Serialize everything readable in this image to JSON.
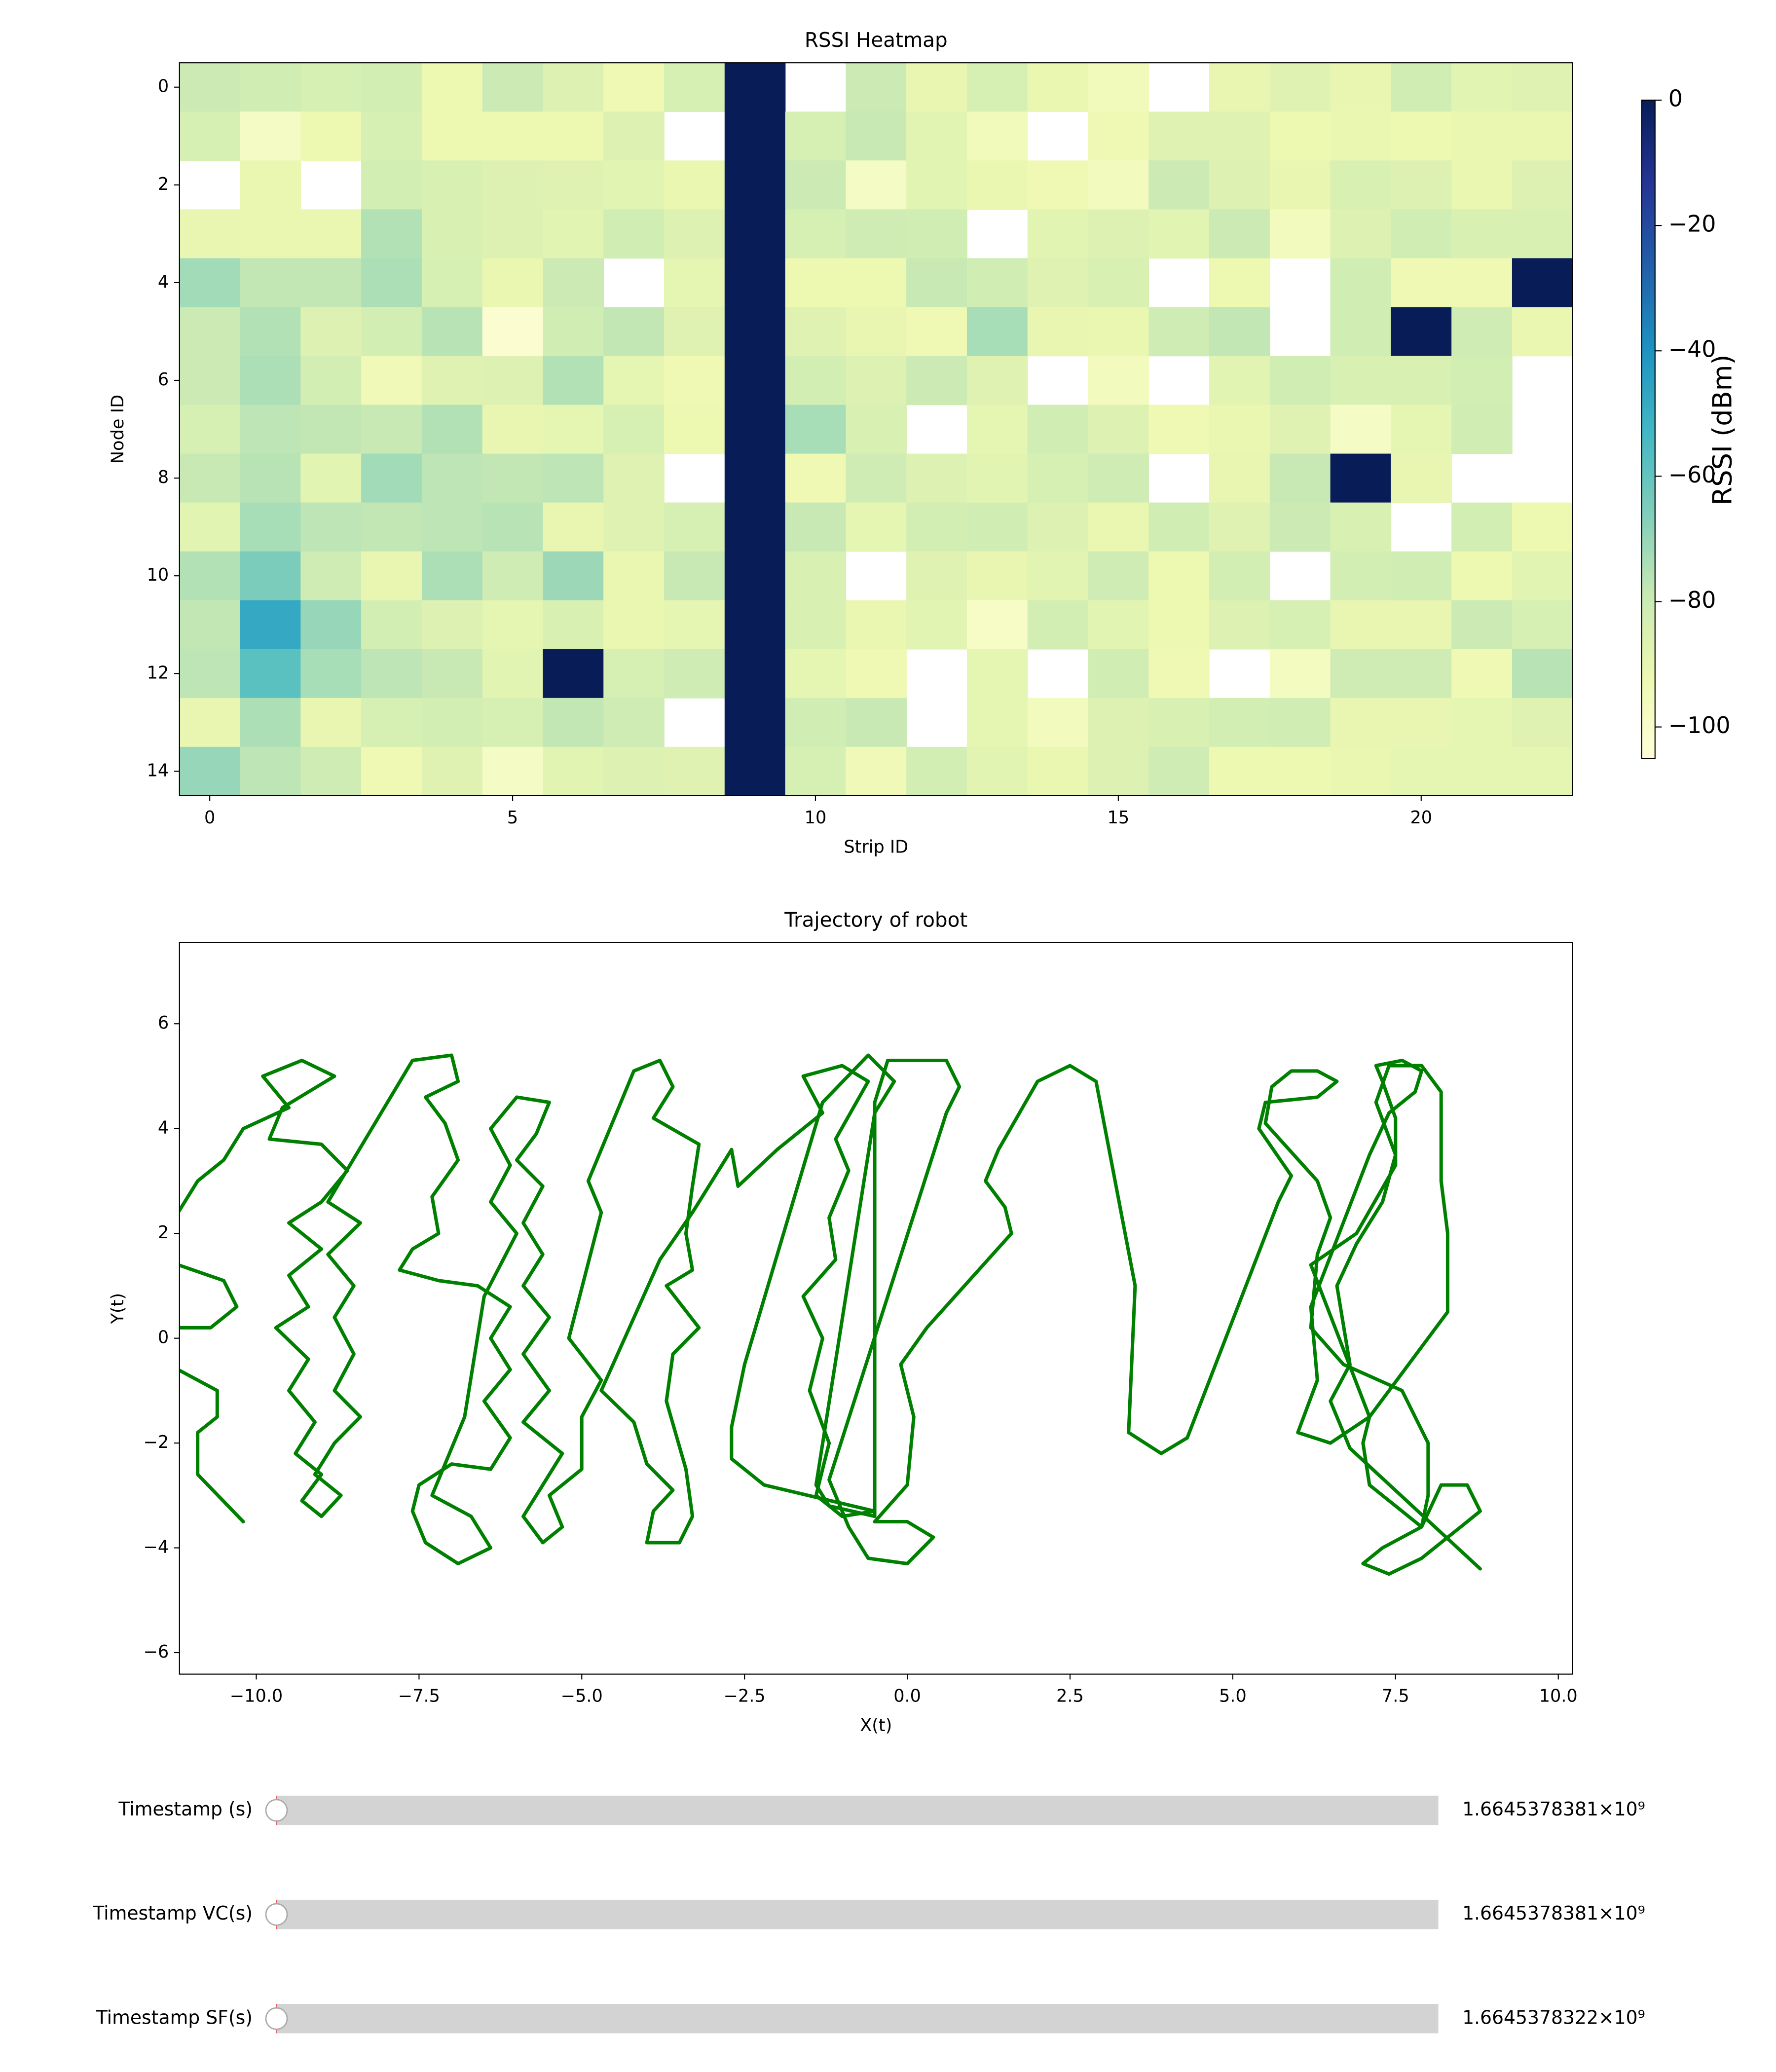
{
  "chart_data": [
    {
      "type": "heatmap",
      "title": "RSSI Heatmap",
      "xlabel": "Strip ID",
      "ylabel": "Node ID",
      "colorbar_label": "RSSI (dBm)",
      "colormap": [
        "#ffffd9",
        "#edf8b1",
        "#c7e9b4",
        "#7fcdbb",
        "#41b6c4",
        "#1d91c0",
        "#225ea8",
        "#253494",
        "#081d58"
      ],
      "clim": [
        -105,
        0
      ],
      "cticks": [
        0,
        {
          "value": -20,
          "label": "−20"
        },
        {
          "value": -40,
          "label": "−40"
        },
        {
          "value": -60,
          "label": "−60"
        },
        {
          "value": -80,
          "label": "−80"
        },
        {
          "value": -100,
          "label": "−100"
        }
      ],
      "xlim": [
        -0.5,
        22.5
      ],
      "ylim": [
        14.5,
        -0.5
      ],
      "xticks": [
        0,
        5,
        10,
        15,
        20
      ],
      "yticks": [
        0,
        2,
        4,
        6,
        8,
        10,
        12,
        14
      ],
      "z": [
        [
          -80,
          -82,
          -84,
          -83,
          -92,
          -80,
          -86,
          -93,
          -84,
          0,
          null,
          -80,
          -90,
          -84,
          -91,
          -95,
          null,
          -90,
          -87,
          -90,
          -82,
          -88,
          -87
        ],
        [
          -84,
          -98,
          -92,
          -84,
          -92,
          -92,
          -92,
          -86,
          null,
          0,
          -84,
          -79,
          -88,
          -95,
          null,
          -93,
          -87,
          -87,
          -92,
          -91,
          -92,
          -91,
          -91
        ],
        [
          null,
          -91,
          null,
          -83,
          -85,
          -86,
          -87,
          -88,
          -91,
          0,
          -80,
          -98,
          -88,
          -91,
          -93,
          -96,
          -80,
          -86,
          -90,
          -85,
          -86,
          -91,
          -86
        ],
        [
          -90,
          -91,
          -91,
          -75,
          -85,
          -86,
          -88,
          -82,
          -86,
          0,
          -84,
          -81,
          -82,
          null,
          -88,
          -86,
          -88,
          -80,
          -96,
          -86,
          -82,
          -85,
          -85
        ],
        [
          -72,
          -78,
          -78,
          -74,
          -84,
          -91,
          -80,
          null,
          -89,
          0,
          -92,
          -92,
          -79,
          -82,
          -87,
          -85,
          null,
          -92,
          null,
          -82,
          -93,
          -93,
          0
        ],
        [
          -80,
          -75,
          -86,
          -83,
          -76,
          -102,
          -82,
          -78,
          -87,
          0,
          -87,
          -90,
          -93,
          -73,
          -90,
          -91,
          -81,
          -78,
          null,
          -82,
          0,
          -81,
          -91
        ],
        [
          -80,
          -74,
          -83,
          -94,
          -87,
          -86,
          -75,
          -89,
          -93,
          0,
          -83,
          -86,
          -80,
          -87,
          null,
          -96,
          null,
          -88,
          -82,
          -85,
          -85,
          -83,
          null
        ],
        [
          -84,
          -77,
          -78,
          -79,
          -75,
          -90,
          -89,
          -84,
          -92,
          0,
          -73,
          -85,
          null,
          -89,
          -82,
          -86,
          -93,
          -91,
          -87,
          -98,
          -89,
          -82,
          null
        ],
        [
          -79,
          -76,
          -88,
          -72,
          -77,
          -78,
          -77,
          -87,
          null,
          0,
          -93,
          -81,
          -86,
          -88,
          -84,
          -81,
          null,
          -90,
          -79,
          0,
          -90,
          null,
          null
        ],
        [
          -88,
          -73,
          -77,
          -78,
          -77,
          -76,
          -90,
          -87,
          -84,
          0,
          -79,
          -89,
          -83,
          -82,
          -86,
          -91,
          -82,
          -87,
          -80,
          -85,
          null,
          -83,
          -92
        ],
        [
          -75,
          -65,
          -81,
          -90,
          -74,
          -81,
          -71,
          -91,
          -79,
          0,
          -85,
          null,
          -87,
          -90,
          -88,
          -81,
          -92,
          -83,
          null,
          -83,
          -82,
          -92,
          -88
        ],
        [
          -78,
          -48,
          -70,
          -83,
          -86,
          -89,
          -85,
          -91,
          -89,
          0,
          -85,
          -91,
          -88,
          -99,
          -83,
          -88,
          -92,
          -86,
          -84,
          -90,
          -90,
          -80,
          -84
        ],
        [
          -77,
          -58,
          -73,
          -77,
          -79,
          -88,
          0,
          -84,
          -81,
          0,
          -89,
          -93,
          null,
          -89,
          null,
          -82,
          -93,
          null,
          -97,
          -81,
          -81,
          -93,
          -76
        ],
        [
          -90,
          -74,
          -90,
          -84,
          -83,
          -84,
          -78,
          -81,
          null,
          0,
          -82,
          -79,
          null,
          -89,
          -96,
          -86,
          -85,
          -83,
          -82,
          -90,
          -90,
          -89,
          -87
        ],
        [
          -70,
          -77,
          -81,
          -93,
          -87,
          -98,
          -88,
          -86,
          -87,
          0,
          -84,
          -94,
          -83,
          -88,
          -91,
          -86,
          -81,
          -92,
          -92,
          -91,
          -89,
          -89,
          -89
        ]
      ]
    },
    {
      "type": "line",
      "title": "Trajectory of robot",
      "xlabel": "X(t)",
      "ylabel": "Y(t)",
      "color": "#008000",
      "xlim": [
        -11.18,
        10.22
      ],
      "ylim": [
        -6.41,
        7.55
      ],
      "xticks": [
        {
          "value": -10,
          "label": "−10.0"
        },
        {
          "value": -7.5,
          "label": "−7.5"
        },
        {
          "value": -5,
          "label": "−5.0"
        },
        {
          "value": -2.5,
          "label": "−2.5"
        },
        {
          "value": 0,
          "label": "0.0"
        },
        {
          "value": 2.5,
          "label": "2.5"
        },
        {
          "value": 5,
          "label": "5.0"
        },
        {
          "value": 7.5,
          "label": "7.5"
        },
        {
          "value": 10,
          "label": "10.0"
        }
      ],
      "yticks": [
        {
          "value": -6,
          "label": "−6"
        },
        {
          "value": -4,
          "label": "−4"
        },
        {
          "value": -2,
          "label": "−2"
        },
        0,
        2,
        4,
        6
      ],
      "x": [
        -10.2,
        -10.9,
        -10.9,
        -10.6,
        -10.6,
        -11.2,
        null,
        -11.2,
        -10.5,
        -10.3,
        -10.7,
        -11.2,
        null,
        -11.2,
        -10.9,
        -10.5,
        -10.2,
        -9.5,
        -9.9,
        -9.3,
        -8.8,
        -9.6,
        -9.8,
        -9.0,
        -8.6,
        -9.0,
        -9.5,
        -9.0,
        -9.5,
        -9.2,
        -9.7,
        -9.2,
        -9.5,
        -9.1,
        -9.4,
        -9.0,
        -9.3,
        -9.0,
        -8.7,
        -9.1,
        -8.8,
        -8.4,
        -8.8,
        -8.5,
        -8.8,
        -8.5,
        -8.9,
        -8.4,
        -8.9,
        -7.6,
        -7.0,
        -6.9,
        -7.4,
        -7.1,
        -6.9,
        -7.3,
        -7.2,
        -7.6,
        -7.8,
        -7.2,
        -6.6,
        -6.1,
        -6.4,
        -6.1,
        -6.5,
        -6.1,
        -6.4,
        -7.0,
        -7.5,
        -7.6,
        -7.4,
        -6.9,
        -6.4,
        -6.7,
        -7.3,
        -6.8,
        -6.5,
        -6.0,
        -6.4,
        -6.1,
        -6.4,
        -6.0,
        -5.5,
        -5.7,
        -6.0,
        -5.6,
        -5.9,
        -5.6,
        -5.9,
        -5.5,
        -5.9,
        -5.5,
        -5.9,
        -5.3,
        -5.6,
        -5.9,
        -5.6,
        -5.3,
        -5.5,
        -5.0,
        -5.0,
        -4.7,
        -5.2,
        -4.7,
        -4.9,
        -4.2,
        -3.8,
        -3.6,
        -3.9,
        -3.2,
        -3.3,
        -3.4,
        -3.3,
        -3.7,
        -3.2,
        -3.6,
        -3.7,
        -3.4,
        -3.3,
        -3.5,
        -4.0,
        -3.9,
        -3.6,
        -4.0,
        -4.2,
        -4.7,
        -3.8,
        -3.3,
        -2.7,
        -2.6,
        -2.0,
        -1.3,
        -1.6,
        -1.0,
        -0.6,
        -1.1,
        -0.9,
        -1.2,
        -1.1,
        -1.6,
        -1.3,
        -1.5,
        -1.2,
        -1.4,
        -1.0,
        -0.5,
        -2.2,
        -2.7,
        -2.7,
        -2.5,
        -1.3,
        -0.6,
        -0.2,
        -0.5,
        -1.4,
        -1.2,
        -0.5,
        -0.5,
        -0.3,
        0.6,
        0.8,
        0.6,
        -1.2,
        -0.9,
        -0.6,
        0.0,
        0.4,
        0.0,
        -0.5,
        0.0,
        0.1,
        -0.1,
        0.3,
        1.6,
        1.5,
        1.2,
        1.4,
        2.0,
        2.5,
        2.9,
        3.5,
        3.4,
        3.9,
        4.3,
        5.7,
        5.9,
        5.4,
        5.5,
        6.3,
        6.6,
        6.3,
        5.9,
        5.6,
        5.5,
        6.3,
        6.5,
        6.3,
        6.2,
        6.7,
        7.6,
        8.0,
        8.0,
        7.9,
        7.3,
        7.0,
        7.4,
        7.9,
        8.5,
        8.8,
        8.6,
        8.2,
        7.9,
        7.1,
        7.0,
        7.1,
        6.2,
        6.9,
        7.5,
        7.5,
        7.3,
        7.2,
        7.6,
        7.9,
        7.8,
        7.4,
        7.1,
        6.2,
        6.3,
        6.0,
        6.5,
        7.1,
        8.3,
        8.3,
        8.2,
        8.2,
        7.9,
        7.4,
        7.2,
        7.5,
        7.3,
        6.9,
        6.6,
        6.8,
        6.5,
        6.8,
        8.8
      ],
      "y": [
        -3.5,
        -2.6,
        -1.8,
        -1.5,
        -1.0,
        -0.6,
        null,
        1.4,
        1.1,
        0.6,
        0.2,
        0.2,
        null,
        2.4,
        3.0,
        3.4,
        4.0,
        4.4,
        5.0,
        5.3,
        5.0,
        4.4,
        3.8,
        3.7,
        3.2,
        2.6,
        2.2,
        1.7,
        1.2,
        0.6,
        0.2,
        -0.4,
        -1.0,
        -1.6,
        -2.2,
        -2.6,
        -3.1,
        -3.4,
        -3.0,
        -2.6,
        -2.0,
        -1.5,
        -1.0,
        -0.3,
        0.4,
        1.0,
        1.6,
        2.2,
        2.6,
        5.3,
        5.4,
        4.9,
        4.6,
        4.1,
        3.4,
        2.7,
        2.0,
        1.7,
        1.3,
        1.1,
        1.0,
        0.6,
        0.0,
        -0.6,
        -1.2,
        -1.9,
        -2.5,
        -2.4,
        -2.8,
        -3.3,
        -3.9,
        -4.3,
        -4.0,
        -3.4,
        -3.0,
        -1.5,
        0.8,
        2.0,
        2.6,
        3.3,
        4.0,
        4.6,
        4.5,
        3.9,
        3.4,
        2.9,
        2.2,
        1.6,
        1.0,
        0.4,
        -0.3,
        -1.0,
        -1.6,
        -2.2,
        -2.8,
        -3.4,
        -3.9,
        -3.6,
        -3.0,
        -2.5,
        -1.5,
        -0.8,
        0.0,
        2.4,
        3.0,
        5.1,
        5.3,
        4.8,
        4.2,
        3.7,
        2.9,
        2.0,
        1.3,
        1.0,
        0.2,
        -0.3,
        -1.2,
        -2.5,
        -3.4,
        -3.9,
        -3.9,
        -3.3,
        -2.9,
        -2.4,
        -1.6,
        -1.0,
        1.5,
        2.4,
        3.6,
        2.9,
        3.6,
        4.3,
        5.0,
        5.2,
        4.9,
        3.8,
        3.2,
        2.3,
        1.5,
        0.8,
        0.0,
        -1.0,
        -2.0,
        -3.0,
        -3.4,
        -3.3,
        -2.8,
        -2.3,
        -1.7,
        -0.5,
        4.5,
        5.4,
        4.9,
        4.3,
        -2.8,
        -3.2,
        -3.4,
        4.5,
        5.3,
        5.3,
        4.8,
        4.3,
        -2.7,
        -3.6,
        -4.2,
        -4.3,
        -3.8,
        -3.5,
        -3.5,
        -2.8,
        -1.5,
        -0.5,
        0.2,
        2.0,
        2.5,
        3.0,
        3.6,
        4.9,
        5.2,
        4.9,
        1.0,
        -1.8,
        -2.2,
        -1.9,
        2.6,
        3.1,
        4.0,
        4.5,
        4.6,
        4.9,
        5.1,
        5.1,
        4.8,
        4.1,
        3.0,
        2.3,
        1.6,
        0.2,
        -0.5,
        -1.0,
        -2.0,
        -3.0,
        -3.6,
        -4.0,
        -4.3,
        -4.5,
        -4.2,
        -3.6,
        -3.3,
        -2.8,
        -2.8,
        -3.6,
        -2.8,
        -2.0,
        -1.5,
        1.4,
        2.0,
        3.3,
        4.2,
        4.9,
        5.2,
        5.3,
        5.1,
        4.7,
        4.3,
        3.5,
        0.6,
        -0.8,
        -1.8,
        -2.0,
        -1.5,
        0.5,
        2.0,
        3.0,
        4.7,
        5.2,
        5.2,
        4.5,
        3.5,
        2.6,
        1.8,
        1.0,
        -0.5,
        -1.2,
        -2.1,
        -4.4
      ]
    }
  ],
  "sliders": [
    {
      "label": "Timestamp (s)",
      "value": 1664537838.1,
      "value_label": "1.6645378381×10⁹"
    },
    {
      "label": "Timestamp VC(s)",
      "value": 1664537838.1,
      "value_label": "1.6645378381×10⁹"
    },
    {
      "label": "Timestamp SF(s)",
      "value": 1664537832.2,
      "value_label": "1.6645378322×10⁹"
    }
  ]
}
